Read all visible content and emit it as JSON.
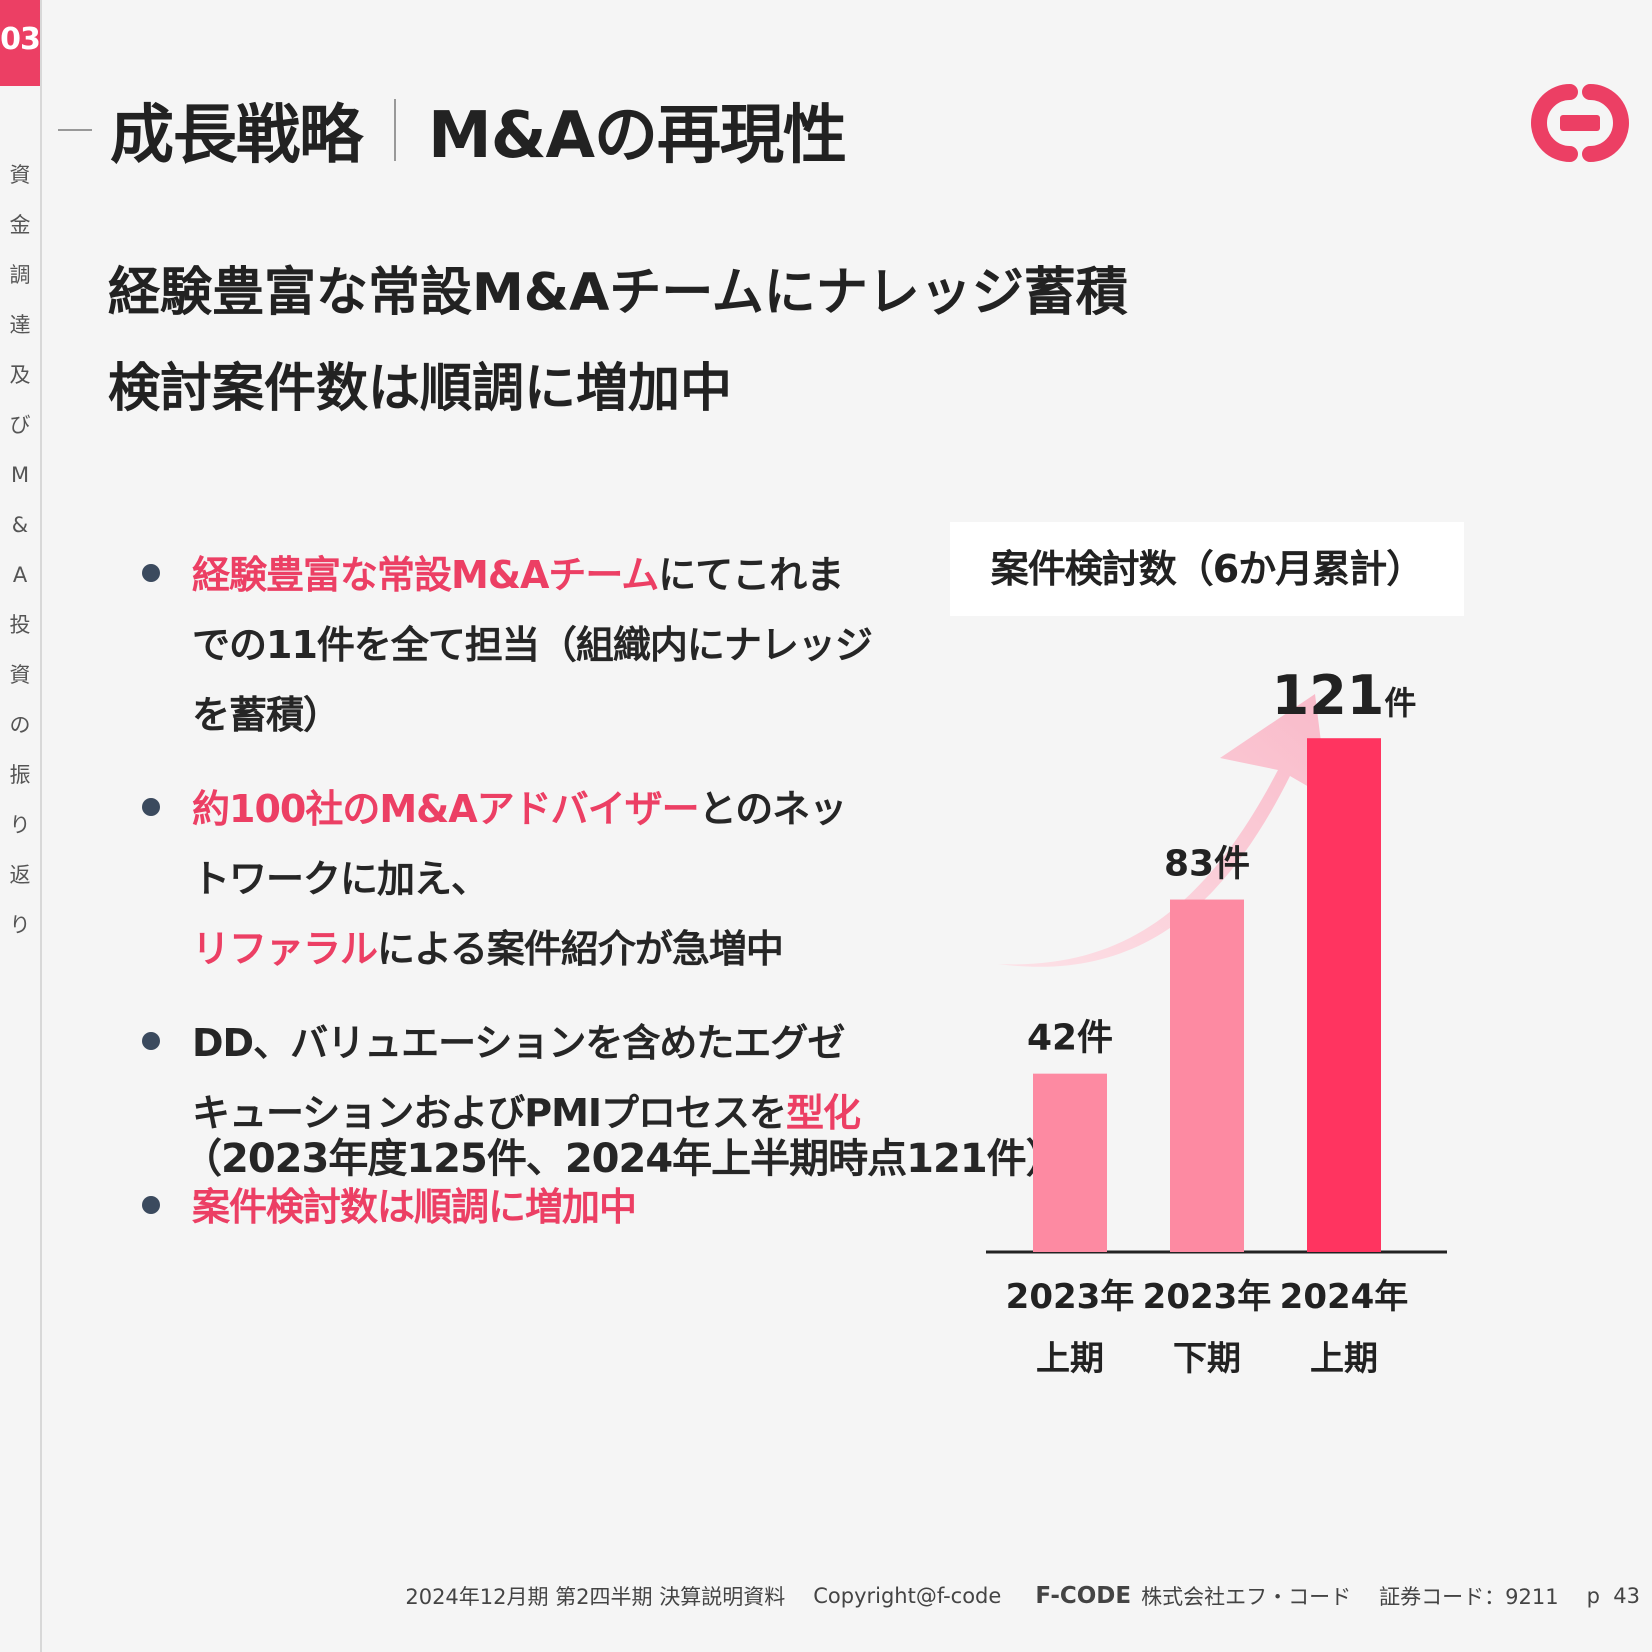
{
  "section": {
    "number": "03",
    "vertical_label": "資金調達及びM&A投資の振り返り"
  },
  "header": {
    "title": "成長戦略",
    "subtitle": "M&Aの再現性"
  },
  "headline": {
    "line1": "経験豊富な常設M&Aチームにナレッジ蓄積",
    "line2": "検討案件数は順調に増加中"
  },
  "bullets": [
    {
      "highlight": "経験豊富な常設M&Aチーム",
      "text": "にてこれまでの11件を全て担当（組織内にナレッジを蓄積）"
    },
    {
      "highlight": "約100社のM&Aアドバイザー",
      "text": "とのネットワークに加え、",
      "highlight2": "リファラル",
      "text2": "による案件紹介が急増中"
    },
    {
      "prefix": "DD、バリュエーションを含めたエグゼキューションおよびPMIプロセスを",
      "highlight": "型化"
    },
    {
      "highlight": "案件検討数は順調に増加中"
    }
  ],
  "note": "（2023年度125件、2024年上半期時点121件）",
  "chart_title": "案件検討数（6か月累計）",
  "chart_data": {
    "type": "bar",
    "title": "案件検討数（6か月累計）",
    "categories": [
      [
        "2023年",
        "上期"
      ],
      [
        "2023年",
        "下期"
      ],
      [
        "2024年",
        "上期"
      ]
    ],
    "values": [
      42,
      83,
      121
    ],
    "value_labels": [
      "42件",
      "83件",
      "121件"
    ],
    "label_number": "121",
    "label_unit": "件",
    "colors": [
      "#fd8aa2",
      "#fd8aa2",
      "#ff3460"
    ],
    "ylim": [
      0,
      130
    ],
    "grid": false,
    "trend_arrow": true
  },
  "footer": {
    "doc": "2024年12月期 第2四半期 決算説明資料",
    "copyright": "Copyright@f-code",
    "brand": "F-CODE",
    "company": "株式会社エフ・コード",
    "code": "証券コード：9211",
    "page_prefix": "p",
    "page": "43"
  },
  "colors": {
    "accent": "#ec3f64",
    "bullet": "#3b4a5e",
    "bar_light": "#fd8aa2",
    "bar_dark": "#ff3460"
  }
}
